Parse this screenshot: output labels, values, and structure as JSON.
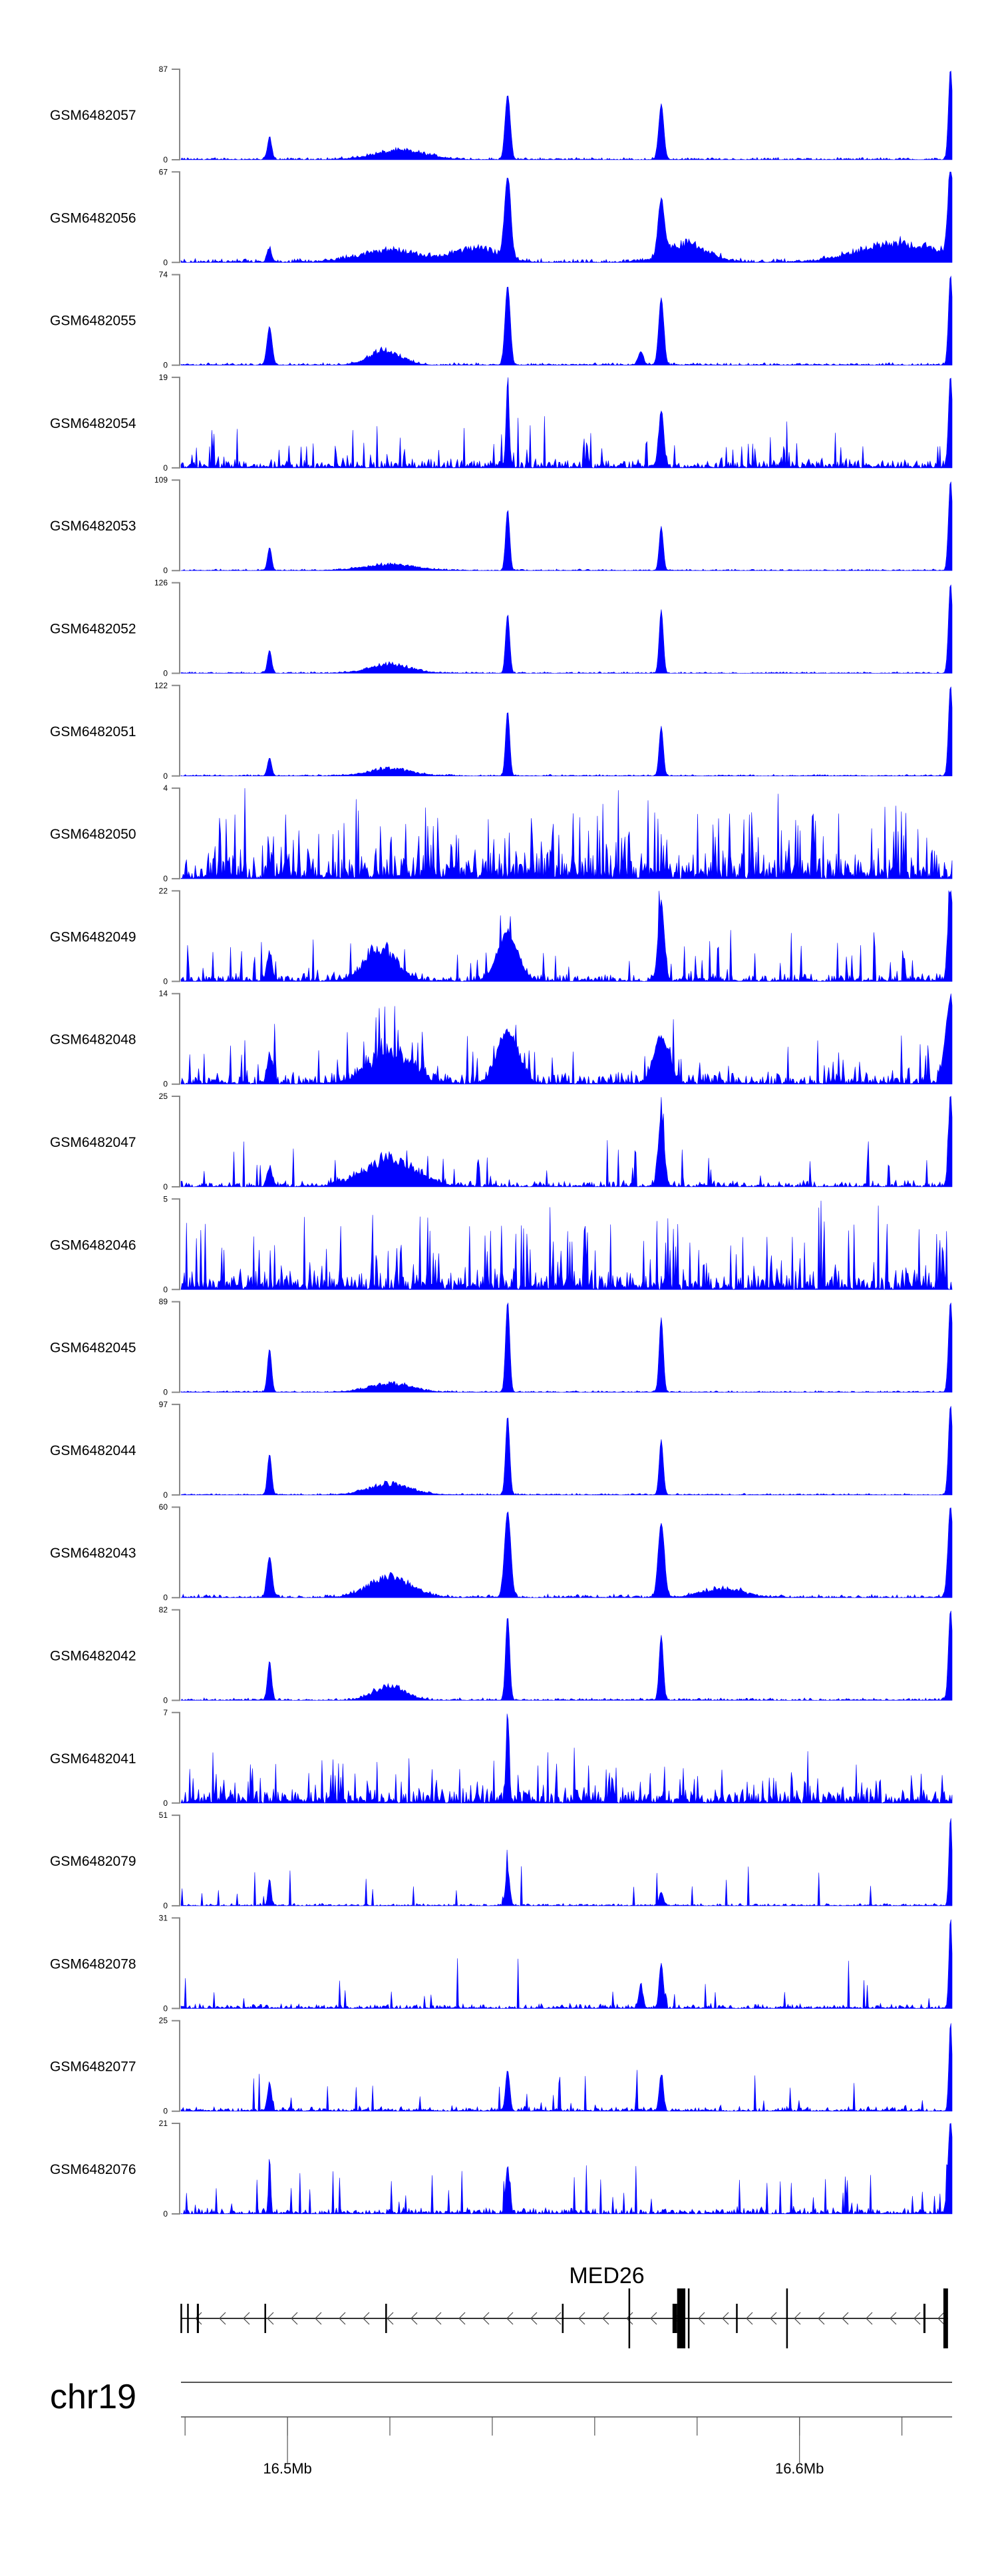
{
  "chart_data": {
    "type": "area",
    "title": "",
    "chromosome": "chr19",
    "xlim_mb": [
      16.4792,
      16.6298
    ],
    "x_ticks_mb": [
      16.48,
      16.5,
      16.52,
      16.54,
      16.56,
      16.58,
      16.6,
      16.62
    ],
    "x_tick_labels": [
      {
        "mb": 16.5,
        "label": "16.5Mb"
      },
      {
        "mb": 16.6,
        "label": "16.6Mb"
      }
    ],
    "fill_color": "#0000ff",
    "gene": {
      "name": "MED26",
      "strand": "-",
      "start_mb": 16.4792,
      "end_mb": 16.629,
      "exons": [
        {
          "start": 16.4791,
          "end": 16.4793,
          "coding": false
        },
        {
          "start": 16.4804,
          "end": 16.4806,
          "coding": false
        },
        {
          "start": 16.4823,
          "end": 16.4827,
          "coding": false
        },
        {
          "start": 16.4955,
          "end": 16.4957,
          "coding": false
        },
        {
          "start": 16.5191,
          "end": 16.5193,
          "coding": false
        },
        {
          "start": 16.5536,
          "end": 16.5538,
          "coding": false
        },
        {
          "start": 16.5666,
          "end": 16.5668,
          "coding": true
        },
        {
          "start": 16.5752,
          "end": 16.5761,
          "coding": false
        },
        {
          "start": 16.5761,
          "end": 16.5777,
          "coding": true
        },
        {
          "start": 16.5782,
          "end": 16.5784,
          "coding": true
        },
        {
          "start": 16.5876,
          "end": 16.5878,
          "coding": false
        },
        {
          "start": 16.5974,
          "end": 16.5976,
          "coding": true
        },
        {
          "start": 16.6242,
          "end": 16.6246,
          "coding": false
        },
        {
          "start": 16.6281,
          "end": 16.629,
          "coding": true
        }
      ]
    },
    "series": [
      {
        "name": "GSM6482057",
        "ymax": 87,
        "noise": 0.03,
        "spiky": 0,
        "peaks": [
          [
            16.4965,
            0.25,
            0.4
          ],
          [
            16.522,
            0.12,
            5
          ],
          [
            16.543,
            0.72,
            0.5
          ],
          [
            16.573,
            0.6,
            0.5
          ],
          [
            16.6295,
            1.0,
            0.4
          ]
        ]
      },
      {
        "name": "GSM6482056",
        "ymax": 67,
        "noise": 0.05,
        "spiky": 0,
        "peaks": [
          [
            16.4965,
            0.15,
            0.4
          ],
          [
            16.52,
            0.15,
            6
          ],
          [
            16.537,
            0.2,
            4
          ],
          [
            16.543,
            0.9,
            0.6
          ],
          [
            16.573,
            0.6,
            0.6
          ],
          [
            16.578,
            0.25,
            4
          ],
          [
            16.62,
            0.25,
            8
          ],
          [
            16.6295,
            1.0,
            0.5
          ]
        ]
      },
      {
        "name": "GSM6482055",
        "ymax": 74,
        "noise": 0.03,
        "spiky": 0,
        "peaks": [
          [
            16.4965,
            0.42,
            0.5
          ],
          [
            16.519,
            0.2,
            3
          ],
          [
            16.543,
            0.88,
            0.5
          ],
          [
            16.573,
            0.74,
            0.5
          ],
          [
            16.569,
            0.15,
            0.5
          ],
          [
            16.6295,
            1.0,
            0.4
          ]
        ]
      },
      {
        "name": "GSM6482054",
        "ymax": 19,
        "noise": 0.12,
        "spiky": 0.35,
        "peaks": [
          [
            16.543,
            0.95,
            0.3
          ],
          [
            16.573,
            0.6,
            0.5
          ],
          [
            16.6295,
            1.0,
            0.4
          ]
        ]
      },
      {
        "name": "GSM6482053",
        "ymax": 109,
        "noise": 0.02,
        "spiky": 0,
        "peaks": [
          [
            16.4965,
            0.25,
            0.4
          ],
          [
            16.52,
            0.08,
            5
          ],
          [
            16.543,
            0.67,
            0.4
          ],
          [
            16.573,
            0.48,
            0.4
          ],
          [
            16.6295,
            1.0,
            0.4
          ]
        ]
      },
      {
        "name": "GSM6482052",
        "ymax": 126,
        "noise": 0.02,
        "spiky": 0,
        "peaks": [
          [
            16.4965,
            0.25,
            0.4
          ],
          [
            16.52,
            0.12,
            4
          ],
          [
            16.543,
            0.65,
            0.4
          ],
          [
            16.573,
            0.7,
            0.4
          ],
          [
            16.6295,
            1.0,
            0.4
          ]
        ]
      },
      {
        "name": "GSM6482051",
        "ymax": 122,
        "noise": 0.02,
        "spiky": 0,
        "peaks": [
          [
            16.4965,
            0.2,
            0.4
          ],
          [
            16.52,
            0.1,
            4
          ],
          [
            16.543,
            0.72,
            0.4
          ],
          [
            16.573,
            0.55,
            0.4
          ],
          [
            16.6295,
            1.0,
            0.4
          ]
        ]
      },
      {
        "name": "GSM6482050",
        "ymax": 4,
        "noise": 0.35,
        "spiky": 0.9,
        "peaks": []
      },
      {
        "name": "GSM6482049",
        "ymax": 22,
        "noise": 0.1,
        "spiky": 0.3,
        "peaks": [
          [
            16.4965,
            0.3,
            0.5
          ],
          [
            16.518,
            0.45,
            3
          ],
          [
            16.543,
            0.5,
            2
          ],
          [
            16.573,
            0.85,
            0.6
          ],
          [
            16.6295,
            1.0,
            0.5
          ]
        ]
      },
      {
        "name": "GSM6482048",
        "ymax": 14,
        "noise": 0.15,
        "spiky": 0.35,
        "peaks": [
          [
            16.4965,
            0.3,
            0.5
          ],
          [
            16.52,
            0.4,
            4
          ],
          [
            16.543,
            0.55,
            2
          ],
          [
            16.573,
            0.5,
            1.5
          ],
          [
            16.6295,
            0.9,
            1
          ]
        ]
      },
      {
        "name": "GSM6482047",
        "ymax": 25,
        "noise": 0.08,
        "spiky": 0.3,
        "peaks": [
          [
            16.4965,
            0.2,
            0.5
          ],
          [
            16.52,
            0.35,
            5
          ],
          [
            16.573,
            0.72,
            0.6
          ],
          [
            16.6295,
            1.0,
            0.4
          ]
        ]
      },
      {
        "name": "GSM6482046",
        "ymax": 5,
        "noise": 0.25,
        "spiky": 0.8,
        "peaks": []
      },
      {
        "name": "GSM6482045",
        "ymax": 89,
        "noise": 0.02,
        "spiky": 0,
        "peaks": [
          [
            16.4965,
            0.48,
            0.4
          ],
          [
            16.52,
            0.12,
            4
          ],
          [
            16.543,
            1.0,
            0.4
          ],
          [
            16.573,
            0.82,
            0.4
          ],
          [
            16.6295,
            1.0,
            0.4
          ]
        ]
      },
      {
        "name": "GSM6482044",
        "ymax": 97,
        "noise": 0.02,
        "spiky": 0,
        "peaks": [
          [
            16.4965,
            0.45,
            0.4
          ],
          [
            16.52,
            0.15,
            4
          ],
          [
            16.543,
            0.87,
            0.4
          ],
          [
            16.573,
            0.6,
            0.4
          ],
          [
            16.6295,
            1.0,
            0.4
          ]
        ]
      },
      {
        "name": "GSM6482043",
        "ymax": 60,
        "noise": 0.04,
        "spiky": 0,
        "peaks": [
          [
            16.4965,
            0.45,
            0.5
          ],
          [
            16.52,
            0.28,
            4
          ],
          [
            16.543,
            0.95,
            0.6
          ],
          [
            16.573,
            0.82,
            0.6
          ],
          [
            16.585,
            0.12,
            4
          ],
          [
            16.6295,
            1.0,
            0.5
          ]
        ]
      },
      {
        "name": "GSM6482042",
        "ymax": 82,
        "noise": 0.03,
        "spiky": 0,
        "peaks": [
          [
            16.4965,
            0.42,
            0.4
          ],
          [
            16.52,
            0.2,
            3
          ],
          [
            16.543,
            0.93,
            0.4
          ],
          [
            16.573,
            0.72,
            0.4
          ],
          [
            16.6295,
            1.0,
            0.4
          ]
        ]
      },
      {
        "name": "GSM6482041",
        "ymax": 7,
        "noise": 0.2,
        "spiky": 0.6,
        "peaks": [
          [
            16.543,
            0.95,
            0.3
          ]
        ]
      },
      {
        "name": "GSM6482079",
        "ymax": 51,
        "noise": 0.03,
        "spiky": 0.1,
        "peaks": [
          [
            16.4965,
            0.3,
            0.3
          ],
          [
            16.543,
            0.4,
            0.4
          ],
          [
            16.573,
            0.15,
            0.4
          ],
          [
            16.6295,
            1.0,
            0.3
          ]
        ]
      },
      {
        "name": "GSM6482078",
        "ymax": 31,
        "noise": 0.06,
        "spiky": 0.15,
        "peaks": [
          [
            16.569,
            0.25,
            0.4
          ],
          [
            16.573,
            0.5,
            0.4
          ],
          [
            16.6295,
            1.0,
            0.3
          ]
        ]
      },
      {
        "name": "GSM6482077",
        "ymax": 25,
        "noise": 0.06,
        "spiky": 0.2,
        "peaks": [
          [
            16.4965,
            0.3,
            0.4
          ],
          [
            16.543,
            0.45,
            0.4
          ],
          [
            16.573,
            0.4,
            0.4
          ],
          [
            16.6295,
            1.0,
            0.3
          ]
        ]
      },
      {
        "name": "GSM6482076",
        "ymax": 21,
        "noise": 0.08,
        "spiky": 0.25,
        "peaks": [
          [
            16.4965,
            0.65,
            0.2
          ],
          [
            16.543,
            0.5,
            0.4
          ],
          [
            16.6295,
            1.0,
            0.5
          ]
        ]
      }
    ]
  }
}
